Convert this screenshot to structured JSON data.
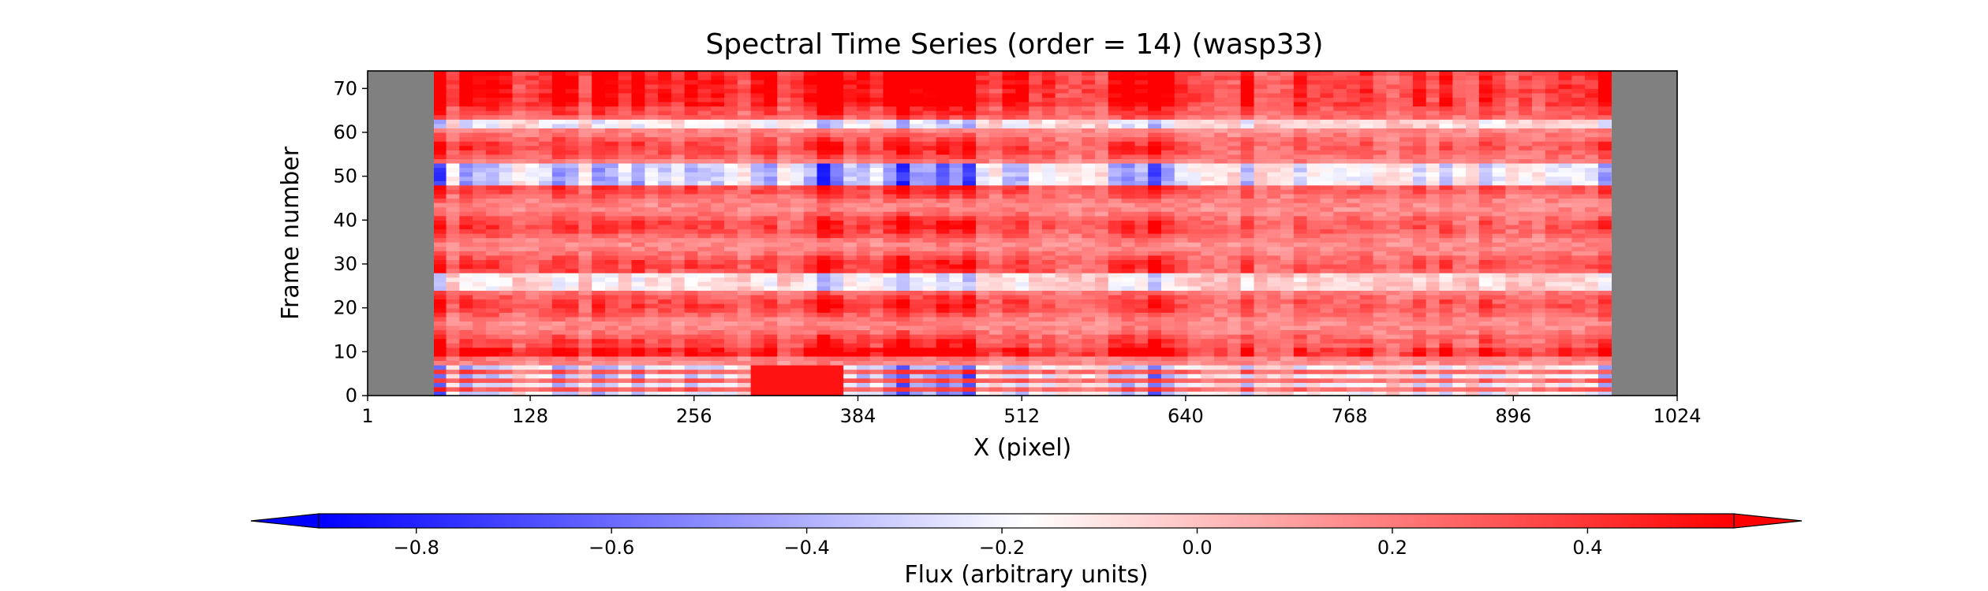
{
  "chart_data": {
    "type": "heatmap",
    "title": "Spectral Time Series (order = 14) (wasp33)",
    "xlabel": "X (pixel)",
    "ylabel": "Frame number",
    "xlim": [
      1,
      1024
    ],
    "ylim": [
      0,
      74
    ],
    "xticks": [
      1,
      128,
      256,
      384,
      512,
      640,
      768,
      896,
      1024
    ],
    "yticks": [
      0,
      10,
      20,
      30,
      40,
      50,
      60,
      70
    ],
    "masked_columns": [
      [
        1,
        52
      ],
      [
        983,
        1024
      ]
    ],
    "masked_color": "#808080",
    "colormap": "bwr",
    "colorbar": {
      "label": "Flux (arbitrary units)",
      "range": [
        -0.9,
        0.55
      ],
      "ticks": [
        -0.8,
        -0.6,
        -0.4,
        -0.2,
        0.0,
        0.2,
        0.4
      ],
      "tick_labels": [
        "−0.8",
        "−0.6",
        "−0.4",
        "−0.2",
        "0.0",
        "0.2",
        "0.4"
      ],
      "extend": "both",
      "low_color": "#0000ff",
      "mid_color": "#ffffff",
      "high_color": "#ff0000"
    },
    "row_features": [
      {
        "frames": [
          0,
          6
        ],
        "description": "strong negative (blue) bands with red streaks"
      },
      {
        "frames": [
          9,
          10
        ],
        "description": "strong positive (red)"
      },
      {
        "frames": [
          24,
          27
        ],
        "description": "negative (blue) dip"
      },
      {
        "frames": [
          48,
          52
        ],
        "description": "strong negative (blue) band"
      },
      {
        "frames": [
          61,
          62
        ],
        "description": "negative (blue) line"
      },
      {
        "frames": [
          66,
          74
        ],
        "description": "strong positive (red)"
      }
    ],
    "column_features": [
      {
        "pixels": [
          52,
          100
        ],
        "description": "highest amplitude column band"
      },
      {
        "pixels": [
          375,
          420
        ],
        "description": "high amplitude column band"
      },
      {
        "pixels": [
          430,
          480
        ],
        "description": "high amplitude column band"
      },
      {
        "pixels": [
          595,
          640
        ],
        "description": "high amplitude column band"
      },
      {
        "pixels": [
          300,
          370
        ],
        "description": "strong red at low frames"
      }
    ]
  }
}
